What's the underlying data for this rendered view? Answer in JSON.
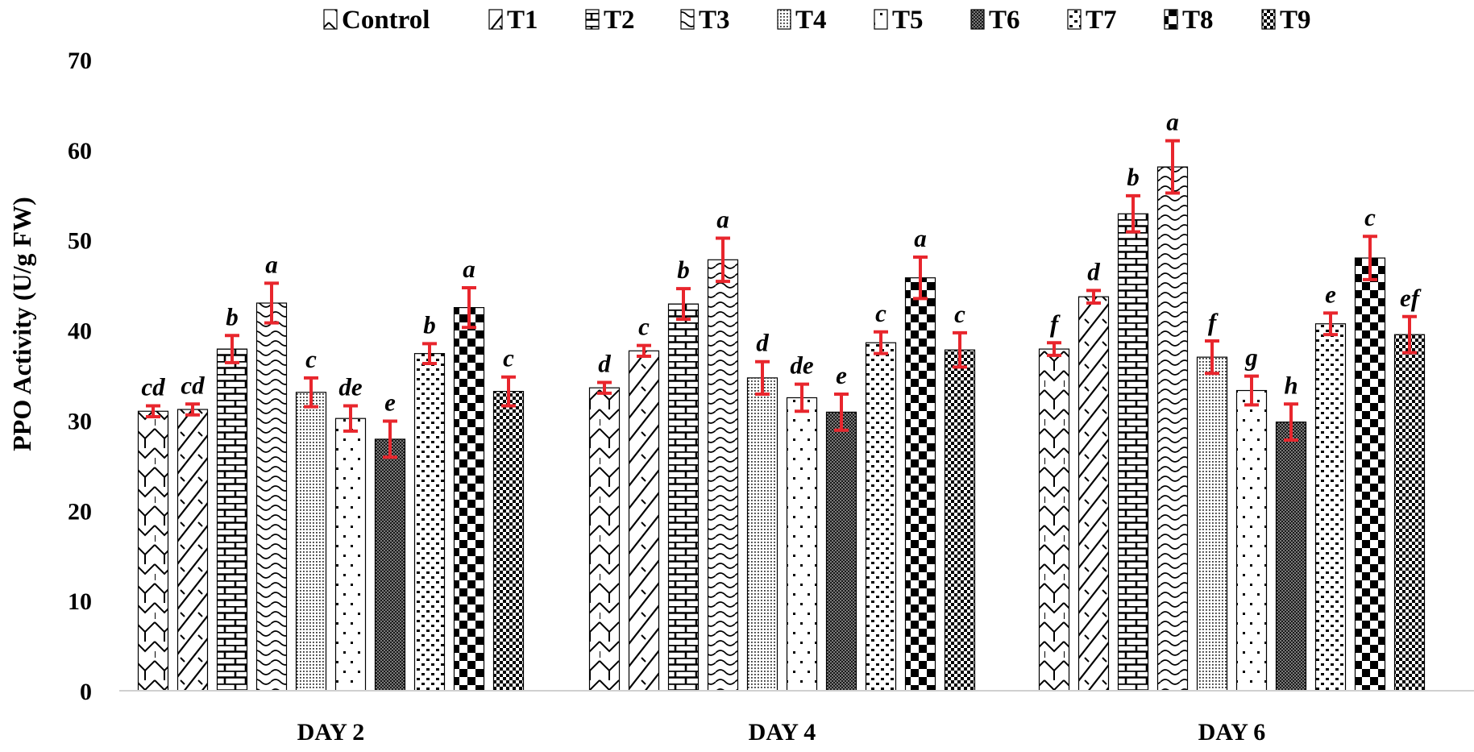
{
  "chart_data": {
    "type": "bar",
    "title": "",
    "xlabel": "",
    "ylabel": "PPO Activity (U/g FW)",
    "ylim": [
      0,
      70
    ],
    "yticks": [
      0,
      10,
      20,
      30,
      40,
      50,
      60,
      70
    ],
    "grid": false,
    "legend_position": "top",
    "categories": [
      "DAY 2",
      "DAY 4",
      "DAY 6"
    ],
    "error_bar_color": "#e8262d",
    "series": [
      {
        "name": "Control",
        "pattern": "zigzag",
        "values": [
          31.0,
          33.6,
          37.9
        ],
        "errors": [
          0.6,
          0.6,
          0.7
        ],
        "labels": [
          "cd",
          "d",
          "f"
        ]
      },
      {
        "name": "T1",
        "pattern": "diagonal",
        "values": [
          31.2,
          37.7,
          43.7
        ],
        "errors": [
          0.6,
          0.6,
          0.7
        ],
        "labels": [
          "cd",
          "c",
          "d"
        ]
      },
      {
        "name": "T2",
        "pattern": "brick",
        "values": [
          37.9,
          42.9,
          52.9
        ],
        "errors": [
          1.5,
          1.7,
          2.0
        ],
        "labels": [
          "b",
          "b",
          "b"
        ]
      },
      {
        "name": "T3",
        "pattern": "wave",
        "values": [
          43.0,
          47.8,
          58.1
        ],
        "errors": [
          2.2,
          2.4,
          2.9
        ],
        "labels": [
          "a",
          "a",
          "a"
        ]
      },
      {
        "name": "T4",
        "pattern": "fine-dots",
        "values": [
          33.1,
          34.7,
          37.0
        ],
        "errors": [
          1.6,
          1.8,
          1.8
        ],
        "labels": [
          "c",
          "d",
          "f"
        ]
      },
      {
        "name": "T5",
        "pattern": "sparse-dots",
        "values": [
          30.2,
          32.5,
          33.3
        ],
        "errors": [
          1.4,
          1.5,
          1.6
        ],
        "labels": [
          "de",
          "de",
          "g"
        ]
      },
      {
        "name": "T6",
        "pattern": "dense-grid",
        "values": [
          27.9,
          30.9,
          29.8
        ],
        "errors": [
          2.0,
          2.0,
          2.0
        ],
        "labels": [
          "e",
          "e",
          "h"
        ]
      },
      {
        "name": "T7",
        "pattern": "confetti",
        "values": [
          37.4,
          38.6,
          40.7
        ],
        "errors": [
          1.1,
          1.2,
          1.2
        ],
        "labels": [
          "b",
          "c",
          "e"
        ]
      },
      {
        "name": "T8",
        "pattern": "checker-large",
        "values": [
          42.5,
          45.8,
          48.0
        ],
        "errors": [
          2.2,
          2.3,
          2.4
        ],
        "labels": [
          "a",
          "a",
          "c"
        ]
      },
      {
        "name": "T9",
        "pattern": "checker-small",
        "values": [
          33.2,
          37.8,
          39.5
        ],
        "errors": [
          1.6,
          1.9,
          2.0
        ],
        "labels": [
          "c",
          "c",
          "ef"
        ]
      }
    ]
  }
}
